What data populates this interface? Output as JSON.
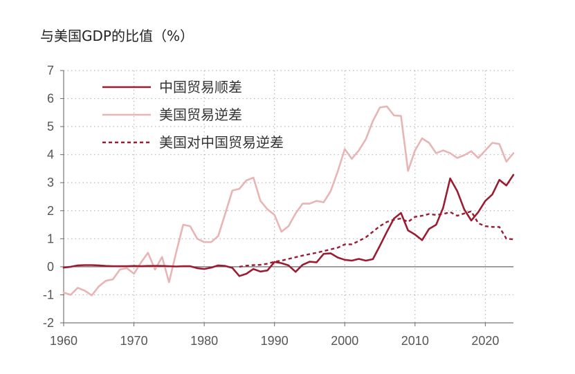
{
  "chart_data": {
    "type": "line",
    "title": "与美国GDP的比值（%）",
    "xlim": [
      1960,
      2024
    ],
    "ylim": [
      -2,
      7
    ],
    "x_ticks": [
      1960,
      1970,
      1980,
      1990,
      2000,
      2010,
      2020
    ],
    "y_ticks": [
      -2,
      -1,
      0,
      1,
      2,
      3,
      4,
      5,
      6,
      7
    ],
    "grid": true,
    "legend_position": "top-left",
    "series": [
      {
        "name": "中国贸易顺差",
        "color": "#9b1b30",
        "style": "solid",
        "points": [
          [
            1960,
            -0.03
          ],
          [
            1961,
            0.0
          ],
          [
            1962,
            0.05
          ],
          [
            1963,
            0.06
          ],
          [
            1964,
            0.06
          ],
          [
            1965,
            0.05
          ],
          [
            1966,
            0.03
          ],
          [
            1967,
            0.02
          ],
          [
            1968,
            0.02
          ],
          [
            1969,
            0.02
          ],
          [
            1970,
            0.03
          ],
          [
            1971,
            0.02
          ],
          [
            1972,
            0.03
          ],
          [
            1973,
            0.03
          ],
          [
            1974,
            0.03
          ],
          [
            1975,
            0.02
          ],
          [
            1976,
            0.01
          ],
          [
            1977,
            0.02
          ],
          [
            1978,
            0.02
          ],
          [
            1979,
            -0.05
          ],
          [
            1980,
            -0.08
          ],
          [
            1981,
            -0.03
          ],
          [
            1982,
            0.05
          ],
          [
            1983,
            0.03
          ],
          [
            1984,
            -0.04
          ],
          [
            1985,
            -0.33
          ],
          [
            1986,
            -0.25
          ],
          [
            1987,
            -0.08
          ],
          [
            1988,
            -0.17
          ],
          [
            1989,
            -0.13
          ],
          [
            1990,
            0.17
          ],
          [
            1991,
            0.13
          ],
          [
            1992,
            0.05
          ],
          [
            1993,
            -0.18
          ],
          [
            1994,
            0.07
          ],
          [
            1995,
            0.18
          ],
          [
            1996,
            0.16
          ],
          [
            1997,
            0.46
          ],
          [
            1998,
            0.48
          ],
          [
            1999,
            0.33
          ],
          [
            2000,
            0.25
          ],
          [
            2001,
            0.22
          ],
          [
            2002,
            0.28
          ],
          [
            2003,
            0.22
          ],
          [
            2004,
            0.27
          ],
          [
            2005,
            0.75
          ],
          [
            2006,
            1.25
          ],
          [
            2007,
            1.72
          ],
          [
            2008,
            1.92
          ],
          [
            2009,
            1.3
          ],
          [
            2010,
            1.15
          ],
          [
            2011,
            0.95
          ],
          [
            2012,
            1.35
          ],
          [
            2013,
            1.5
          ],
          [
            2014,
            2.1
          ],
          [
            2015,
            3.15
          ],
          [
            2016,
            2.7
          ],
          [
            2017,
            2.05
          ],
          [
            2018,
            1.65
          ],
          [
            2019,
            1.95
          ],
          [
            2020,
            2.35
          ],
          [
            2021,
            2.58
          ],
          [
            2022,
            3.1
          ],
          [
            2023,
            2.9
          ],
          [
            2024,
            3.28
          ]
        ]
      },
      {
        "name": "美国贸易逆差",
        "color": "#e8b4b4",
        "style": "solid",
        "points": [
          [
            1960,
            -0.92
          ],
          [
            1961,
            -1.0
          ],
          [
            1962,
            -0.75
          ],
          [
            1963,
            -0.85
          ],
          [
            1964,
            -1.02
          ],
          [
            1965,
            -0.7
          ],
          [
            1966,
            -0.5
          ],
          [
            1967,
            -0.45
          ],
          [
            1968,
            -0.1
          ],
          [
            1969,
            -0.05
          ],
          [
            1970,
            -0.25
          ],
          [
            1971,
            0.15
          ],
          [
            1972,
            0.5
          ],
          [
            1973,
            -0.1
          ],
          [
            1974,
            0.35
          ],
          [
            1975,
            -0.55
          ],
          [
            1976,
            0.5
          ],
          [
            1977,
            1.5
          ],
          [
            1978,
            1.45
          ],
          [
            1979,
            1.0
          ],
          [
            1980,
            0.88
          ],
          [
            1981,
            0.88
          ],
          [
            1982,
            1.1
          ],
          [
            1983,
            1.9
          ],
          [
            1984,
            2.72
          ],
          [
            1985,
            2.78
          ],
          [
            1986,
            3.08
          ],
          [
            1987,
            3.18
          ],
          [
            1988,
            2.35
          ],
          [
            1989,
            2.05
          ],
          [
            1990,
            1.85
          ],
          [
            1991,
            1.25
          ],
          [
            1992,
            1.45
          ],
          [
            1993,
            1.9
          ],
          [
            1994,
            2.25
          ],
          [
            1995,
            2.25
          ],
          [
            1996,
            2.35
          ],
          [
            1997,
            2.3
          ],
          [
            1998,
            2.7
          ],
          [
            1999,
            3.4
          ],
          [
            2000,
            4.2
          ],
          [
            2001,
            3.85
          ],
          [
            2002,
            4.15
          ],
          [
            2003,
            4.55
          ],
          [
            2004,
            5.2
          ],
          [
            2005,
            5.68
          ],
          [
            2006,
            5.72
          ],
          [
            2007,
            5.4
          ],
          [
            2008,
            5.38
          ],
          [
            2009,
            3.42
          ],
          [
            2010,
            4.15
          ],
          [
            2011,
            4.58
          ],
          [
            2012,
            4.42
          ],
          [
            2013,
            4.05
          ],
          [
            2014,
            4.15
          ],
          [
            2015,
            4.05
          ],
          [
            2016,
            3.88
          ],
          [
            2017,
            3.98
          ],
          [
            2018,
            4.12
          ],
          [
            2019,
            3.88
          ],
          [
            2020,
            4.15
          ],
          [
            2021,
            4.42
          ],
          [
            2022,
            4.38
          ],
          [
            2023,
            3.75
          ],
          [
            2024,
            4.05
          ]
        ]
      },
      {
        "name": "美国对中国贸易逆差",
        "color": "#9b1b30",
        "style": "dashed",
        "points": [
          [
            1985,
            0.0
          ],
          [
            1986,
            0.04
          ],
          [
            1987,
            0.06
          ],
          [
            1988,
            0.07
          ],
          [
            1989,
            0.11
          ],
          [
            1990,
            0.18
          ],
          [
            1991,
            0.22
          ],
          [
            1992,
            0.28
          ],
          [
            1993,
            0.34
          ],
          [
            1994,
            0.4
          ],
          [
            1995,
            0.45
          ],
          [
            1996,
            0.5
          ],
          [
            1997,
            0.56
          ],
          [
            1998,
            0.62
          ],
          [
            1999,
            0.68
          ],
          [
            2000,
            0.8
          ],
          [
            2001,
            0.8
          ],
          [
            2002,
            0.92
          ],
          [
            2003,
            1.05
          ],
          [
            2004,
            1.25
          ],
          [
            2005,
            1.45
          ],
          [
            2006,
            1.6
          ],
          [
            2007,
            1.68
          ],
          [
            2008,
            1.72
          ],
          [
            2009,
            1.6
          ],
          [
            2010,
            1.78
          ],
          [
            2011,
            1.82
          ],
          [
            2012,
            1.88
          ],
          [
            2013,
            1.85
          ],
          [
            2014,
            1.88
          ],
          [
            2015,
            1.95
          ],
          [
            2016,
            1.82
          ],
          [
            2017,
            1.9
          ],
          [
            2018,
            1.98
          ],
          [
            2019,
            1.55
          ],
          [
            2020,
            1.45
          ],
          [
            2021,
            1.42
          ],
          [
            2022,
            1.42
          ],
          [
            2023,
            1.0
          ],
          [
            2024,
            0.98
          ]
        ]
      }
    ]
  }
}
